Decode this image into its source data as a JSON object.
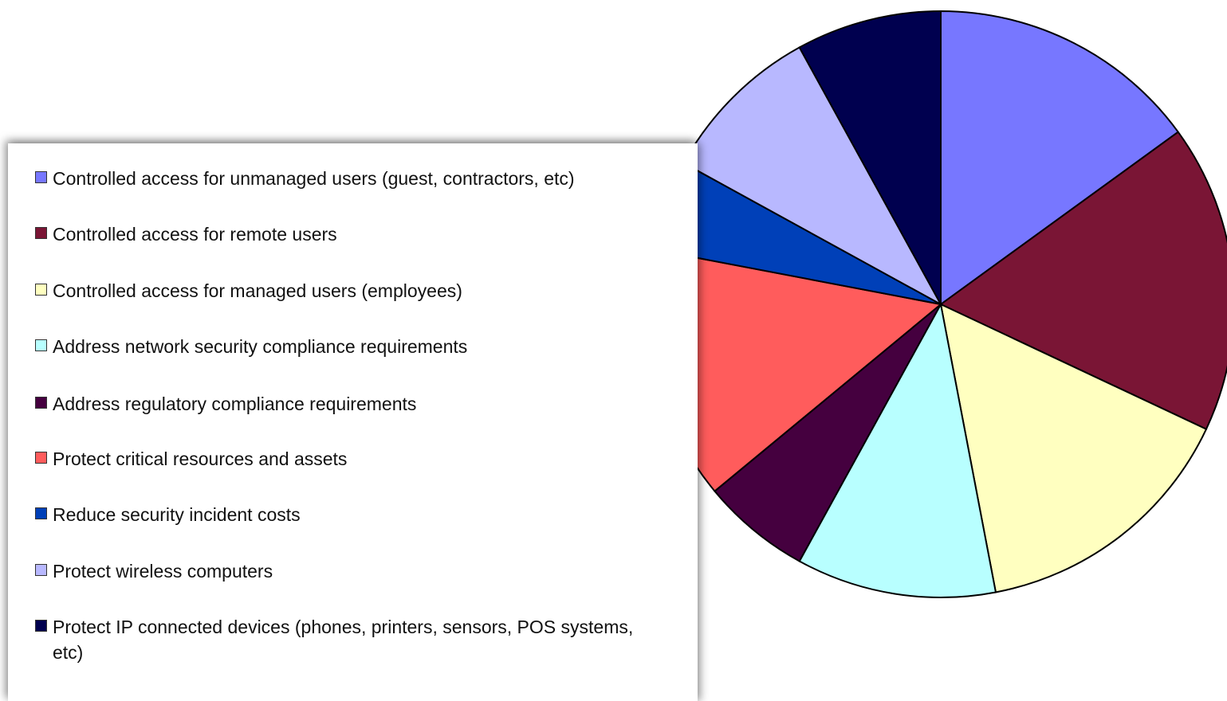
{
  "chart_data": {
    "type": "pie",
    "categories": [
      "Controlled access for unmanaged users (guest, contractors, etc)",
      "Controlled access for remote users",
      "Controlled access for managed users (employees)",
      "Address network security compliance requirements",
      "Address regulatory compliance requirements",
      "Protect critical resources and assets",
      "Reduce security incident costs",
      "Protect wireless computers",
      "Protect IP connected devices (phones, printers, sensors, POS systems, etc)"
    ],
    "values": [
      15,
      17,
      15,
      11,
      6,
      14,
      5,
      9,
      8
    ],
    "colors": [
      "#7777ff",
      "#7a1535",
      "#ffffc0",
      "#b8ffff",
      "#45003f",
      "#ff5c5c",
      "#0040b8",
      "#b8b8ff",
      "#00004f"
    ]
  }
}
